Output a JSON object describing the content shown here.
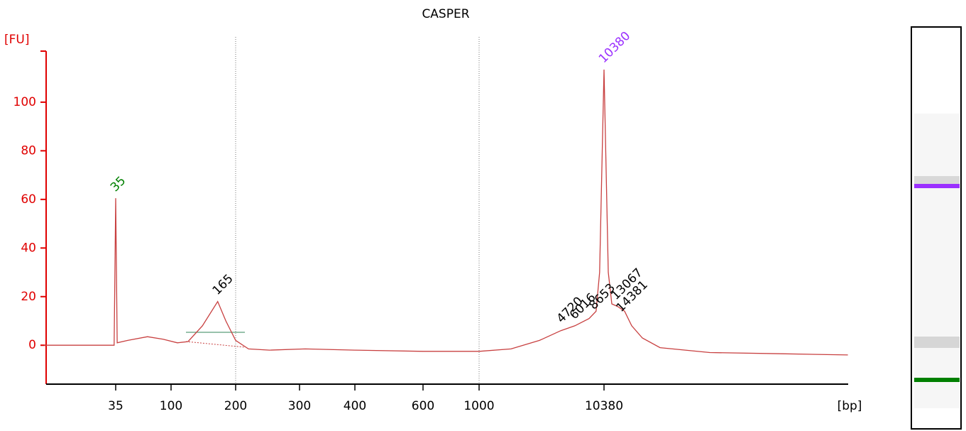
{
  "chart_data": {
    "type": "line",
    "title": "CASPER",
    "y_label": "[FU]",
    "x_label": "[bp]",
    "axis_color": "#e00000",
    "series": [
      {
        "color": "#c84040",
        "x": [
          9,
          31,
          34,
          35,
          36,
          44,
          64,
          86,
          107,
          120,
          140,
          165,
          180,
          200,
          217,
          248,
          309,
          400,
          600,
          1000,
          1820,
          3100,
          4620,
          6020,
          7850,
          8940,
          9560,
          10380,
          11240,
          12010,
          13370,
          15270,
          17440,
          21280,
          29650,
          75220,
          284400,
          1000000
        ],
        "values": [
          0,
          0,
          0,
          60.5,
          1,
          2,
          3.5,
          2.5,
          1,
          1.5,
          8,
          18,
          10,
          2,
          -1.5,
          -2,
          -1.5,
          -2,
          -2.5,
          -2.5,
          -1.5,
          2,
          6,
          8,
          11,
          14,
          30,
          113.4,
          30,
          17,
          16,
          14,
          8,
          3,
          -1,
          -3,
          -3.5,
          -4
        ]
      }
    ],
    "ylim": [
      -16,
      121
    ],
    "yticks": [
      0,
      20,
      40,
      60,
      80,
      100
    ],
    "xticks": [
      35,
      100,
      200,
      300,
      400,
      600,
      1000,
      10380
    ],
    "reference_lines": [
      200,
      1000
    ],
    "peaks": [
      {
        "bp": 35,
        "height": 60.5,
        "color": "#008000"
      },
      {
        "bp": 165,
        "height": 18,
        "color": "#000000"
      },
      {
        "bp": 4720,
        "height": 6.5,
        "color": "#000000"
      },
      {
        "bp": 6016,
        "height": 8,
        "color": "#000000"
      },
      {
        "bp": 8653,
        "height": 12,
        "color": "#000000"
      },
      {
        "bp": 10380,
        "height": 113.4,
        "color": "#9b30ff"
      },
      {
        "bp": 13067,
        "height": 16,
        "color": "#000000"
      },
      {
        "bp": 14381,
        "height": 11,
        "color": "#000000"
      }
    ]
  }
}
